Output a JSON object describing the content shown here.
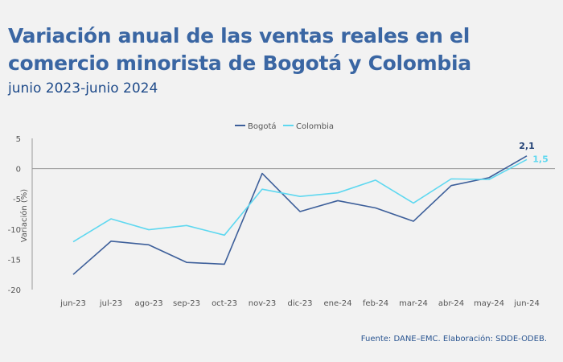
{
  "title_line1": "Variación anual de las ventas reales en el",
  "title_line2": "comercio minorista de Bogotá y Colombia",
  "subtitle": "junio 2023-junio 2024",
  "source": "Fuente: DANE–EMC. Elaboración: SDDE-ODEB.",
  "colors": {
    "bogota": "#3d5f9a",
    "colombia": "#5fd8f0",
    "axis": "#999999"
  },
  "chart_data": {
    "type": "line",
    "title": "Variación anual de las ventas reales en el comercio minorista de Bogotá y Colombia",
    "subtitle": "junio 2023-junio 2024",
    "xlabel": "",
    "ylabel": "Variación (%)",
    "ylim": [
      -20,
      5
    ],
    "yticks": [
      5,
      0,
      -5,
      -10,
      -15,
      -20
    ],
    "ytick_labels": [
      "5",
      "0",
      "-5",
      "-10",
      "-15",
      "-20"
    ],
    "categories": [
      "jun-23",
      "jul-23",
      "ago-23",
      "sep-23",
      "oct-23",
      "nov-23",
      "dic-23",
      "ene-24",
      "feb-24",
      "mar-24",
      "abr-24",
      "may-24",
      "jun-24"
    ],
    "legend_position": "top-center",
    "series": [
      {
        "name": "Bogotá",
        "color": "#3d5f9a",
        "values": [
          -17.5,
          -12.0,
          -12.6,
          -15.5,
          -15.8,
          -0.8,
          -7.1,
          -5.3,
          -6.5,
          -8.7,
          -2.8,
          -1.5,
          2.1
        ],
        "last_label": "2,1"
      },
      {
        "name": "Colombia",
        "color": "#5fd8f0",
        "values": [
          -12.1,
          -8.3,
          -10.1,
          -9.4,
          -11.0,
          -3.4,
          -4.6,
          -4.0,
          -1.9,
          -5.7,
          -1.7,
          -1.8,
          1.5
        ],
        "last_label": "1,5"
      }
    ]
  }
}
